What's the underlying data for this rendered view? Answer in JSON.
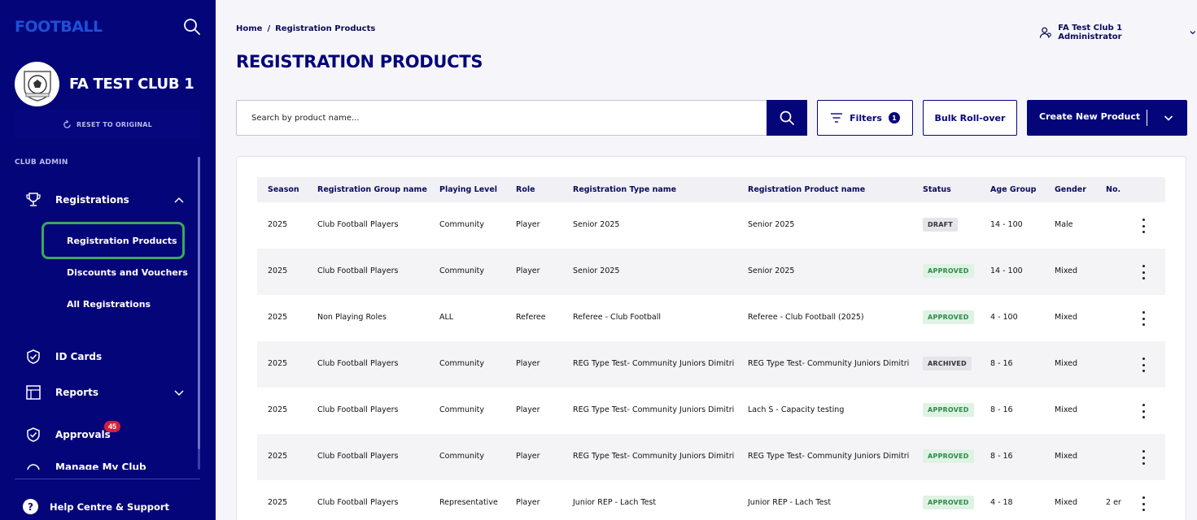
{
  "sidebar": {
    "logo": "FOOTBALL",
    "club_name": "FA TEST CLUB 1",
    "reset_label": "RESET TO ORIGINAL",
    "section_label": "CLUB ADMIN",
    "registrations_label": "Registrations",
    "sub_items": [
      "Registration Products",
      "Discounts and Vouchers",
      "All Registrations"
    ],
    "id_cards_label": "ID Cards",
    "reports_label": "Reports",
    "approvals_label": "Approvals",
    "approvals_badge": "45",
    "manage_label": "Manage My Club",
    "help_label": "Help Centre & Support"
  },
  "header": {
    "breadcrumb_home": "Home",
    "breadcrumb_sep": "/",
    "breadcrumb_current": "Registration Products",
    "user_label": "FA Test Club 1 Administrator",
    "page_title": "REGISTRATION PRODUCTS"
  },
  "toolbar": {
    "search_placeholder": "Search by product name...",
    "filters_label": "Filters",
    "filters_count": "1",
    "bulk_label": "Bulk Roll-over",
    "create_label": "Create New Product"
  },
  "table": {
    "columns": [
      "Season",
      "Registration Group name",
      "Playing Level",
      "Role",
      "Registration Type name",
      "Registration Product name",
      "Status",
      "Age Group",
      "Gender",
      "No."
    ],
    "rows": [
      {
        "season": "2025",
        "group": "Club Football Players",
        "level": "Community",
        "role": "Player",
        "type": "Senior 2025",
        "product": "Senior 2025",
        "status": "DRAFT",
        "age": "14 - 100",
        "gender": "Male",
        "no": ""
      },
      {
        "season": "2025",
        "group": "Club Football Players",
        "level": "Community",
        "role": "Player",
        "type": "Senior 2025",
        "product": "Senior 2025",
        "status": "APPROVED",
        "age": "14 - 100",
        "gender": "Mixed",
        "no": ""
      },
      {
        "season": "2025",
        "group": "Non Playing Roles",
        "level": "ALL",
        "role": "Referee",
        "type": "Referee - Club Football",
        "product": "Referee - Club Football (2025)",
        "status": "APPROVED",
        "age": "4 - 100",
        "gender": "Mixed",
        "no": ""
      },
      {
        "season": "2025",
        "group": "Club Football Players",
        "level": "Community",
        "role": "Player",
        "type": "REG Type Test- Community Juniors Dimitri",
        "product": "REG Type Test- Community Juniors Dimitri",
        "status": "ARCHIVED",
        "age": "8 - 16",
        "gender": "Mixed",
        "no": ""
      },
      {
        "season": "2025",
        "group": "Club Football Players",
        "level": "Community",
        "role": "Player",
        "type": "REG Type Test- Community Juniors Dimitri",
        "product": "Lach S - Capacity testing",
        "status": "APPROVED",
        "age": "8 - 16",
        "gender": "Mixed",
        "no": ""
      },
      {
        "season": "2025",
        "group": "Club Football Players",
        "level": "Community",
        "role": "Player",
        "type": "REG Type Test- Community Juniors Dimitri",
        "product": "REG Type Test- Community Juniors Dimitri",
        "status": "APPROVED",
        "age": "8 - 16",
        "gender": "Mixed",
        "no": ""
      },
      {
        "season": "2025",
        "group": "Club Football Players",
        "level": "Representative",
        "role": "Player",
        "type": "Junior REP - Lach Test",
        "product": "Junior REP - Lach Test",
        "status": "APPROVED",
        "age": "4 - 18",
        "gender": "Mixed",
        "no": "2 er"
      }
    ]
  },
  "colors": {
    "brand_navy": "#05057a",
    "active_outline": "#3aa859",
    "approved_text": "#2e8a48",
    "badge_red": "#d21f3c"
  }
}
